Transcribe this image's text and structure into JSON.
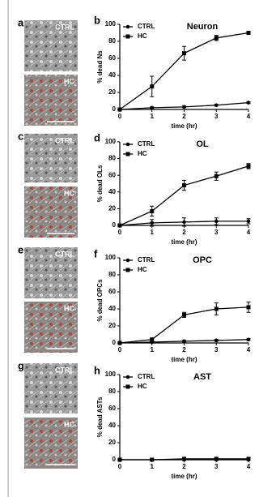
{
  "images": [
    {
      "letter": "a",
      "labels": [
        "CTRL",
        "HC"
      ]
    },
    {
      "letter": "c",
      "labels": [
        "CTRL",
        "HC"
      ]
    },
    {
      "letter": "e",
      "labels": [
        "CTRL",
        "HC"
      ]
    },
    {
      "letter": "g",
      "labels": [
        "CTRL",
        "HC"
      ]
    }
  ],
  "chart_data": [
    {
      "type": "line",
      "panel": "b",
      "title": "Neuron",
      "ylabel": "% dead Ns",
      "xlabel": "time (hr)",
      "x": [
        0,
        1,
        2,
        3,
        4
      ],
      "xlim": [
        0,
        4
      ],
      "xticks": [
        0,
        1,
        2,
        3,
        4
      ],
      "ylim": [
        0,
        100
      ],
      "yticks": [
        0,
        20,
        40,
        60,
        80,
        100
      ],
      "series": [
        {
          "name": "CTRL",
          "color": "#000000",
          "marker": "circle",
          "values": [
            0,
            2,
            3,
            5,
            8
          ],
          "errors": [
            0,
            1,
            1,
            1,
            1
          ]
        },
        {
          "name": "HC",
          "color": "#000000",
          "marker": "square",
          "values": [
            0,
            27,
            66,
            84,
            90
          ],
          "errors": [
            0,
            12,
            8,
            3,
            1
          ]
        }
      ]
    },
    {
      "type": "line",
      "panel": "d",
      "title": "OL",
      "ylabel": "% dead OLs",
      "xlabel": "time (hr)",
      "x": [
        0,
        1,
        2,
        3,
        4
      ],
      "xlim": [
        0,
        4
      ],
      "xticks": [
        0,
        1,
        2,
        3,
        4
      ],
      "ylim": [
        0,
        100
      ],
      "yticks": [
        0,
        20,
        40,
        60,
        80,
        100
      ],
      "series": [
        {
          "name": "CTRL",
          "color": "#000000",
          "marker": "circle",
          "values": [
            0,
            3,
            4,
            5,
            5
          ],
          "errors": [
            0,
            4,
            5,
            4,
            3
          ]
        },
        {
          "name": "HC",
          "color": "#000000",
          "marker": "square",
          "values": [
            0,
            17,
            48,
            59,
            71
          ],
          "errors": [
            0,
            6,
            6,
            5,
            3
          ]
        }
      ]
    },
    {
      "type": "line",
      "panel": "f",
      "title": "OPC",
      "ylabel": "% dead OPCs",
      "xlabel": "time (hr)",
      "x": [
        0,
        1,
        2,
        3,
        4
      ],
      "xlim": [
        0,
        4
      ],
      "xticks": [
        0,
        1,
        2,
        3,
        4
      ],
      "ylim": [
        0,
        100
      ],
      "yticks": [
        0,
        20,
        40,
        60,
        80,
        100
      ],
      "series": [
        {
          "name": "CTRL",
          "color": "#000000",
          "marker": "circle",
          "values": [
            0,
            1,
            2,
            3,
            4
          ],
          "errors": [
            0,
            1,
            1,
            1,
            1
          ]
        },
        {
          "name": "HC",
          "color": "#000000",
          "marker": "square",
          "values": [
            0,
            4,
            33,
            40,
            42
          ],
          "errors": [
            0,
            2,
            3,
            7,
            6
          ]
        }
      ]
    },
    {
      "type": "line",
      "panel": "h",
      "title": "AST",
      "ylabel": "% dead ASTs",
      "xlabel": "time (hr)",
      "x": [
        0,
        1,
        2,
        3,
        4
      ],
      "xlim": [
        0,
        4
      ],
      "xticks": [
        0,
        1,
        2,
        3,
        4
      ],
      "ylim": [
        0,
        100
      ],
      "yticks": [
        0,
        20,
        40,
        60,
        80,
        100
      ],
      "series": [
        {
          "name": "CTRL",
          "color": "#000000",
          "marker": "circle",
          "values": [
            0,
            0,
            0,
            0,
            0
          ],
          "errors": [
            0,
            0,
            0,
            0,
            0
          ]
        },
        {
          "name": "HC",
          "color": "#000000",
          "marker": "square",
          "values": [
            0,
            0,
            1,
            1,
            1
          ],
          "errors": [
            0,
            0,
            1,
            1,
            1
          ]
        }
      ]
    }
  ]
}
